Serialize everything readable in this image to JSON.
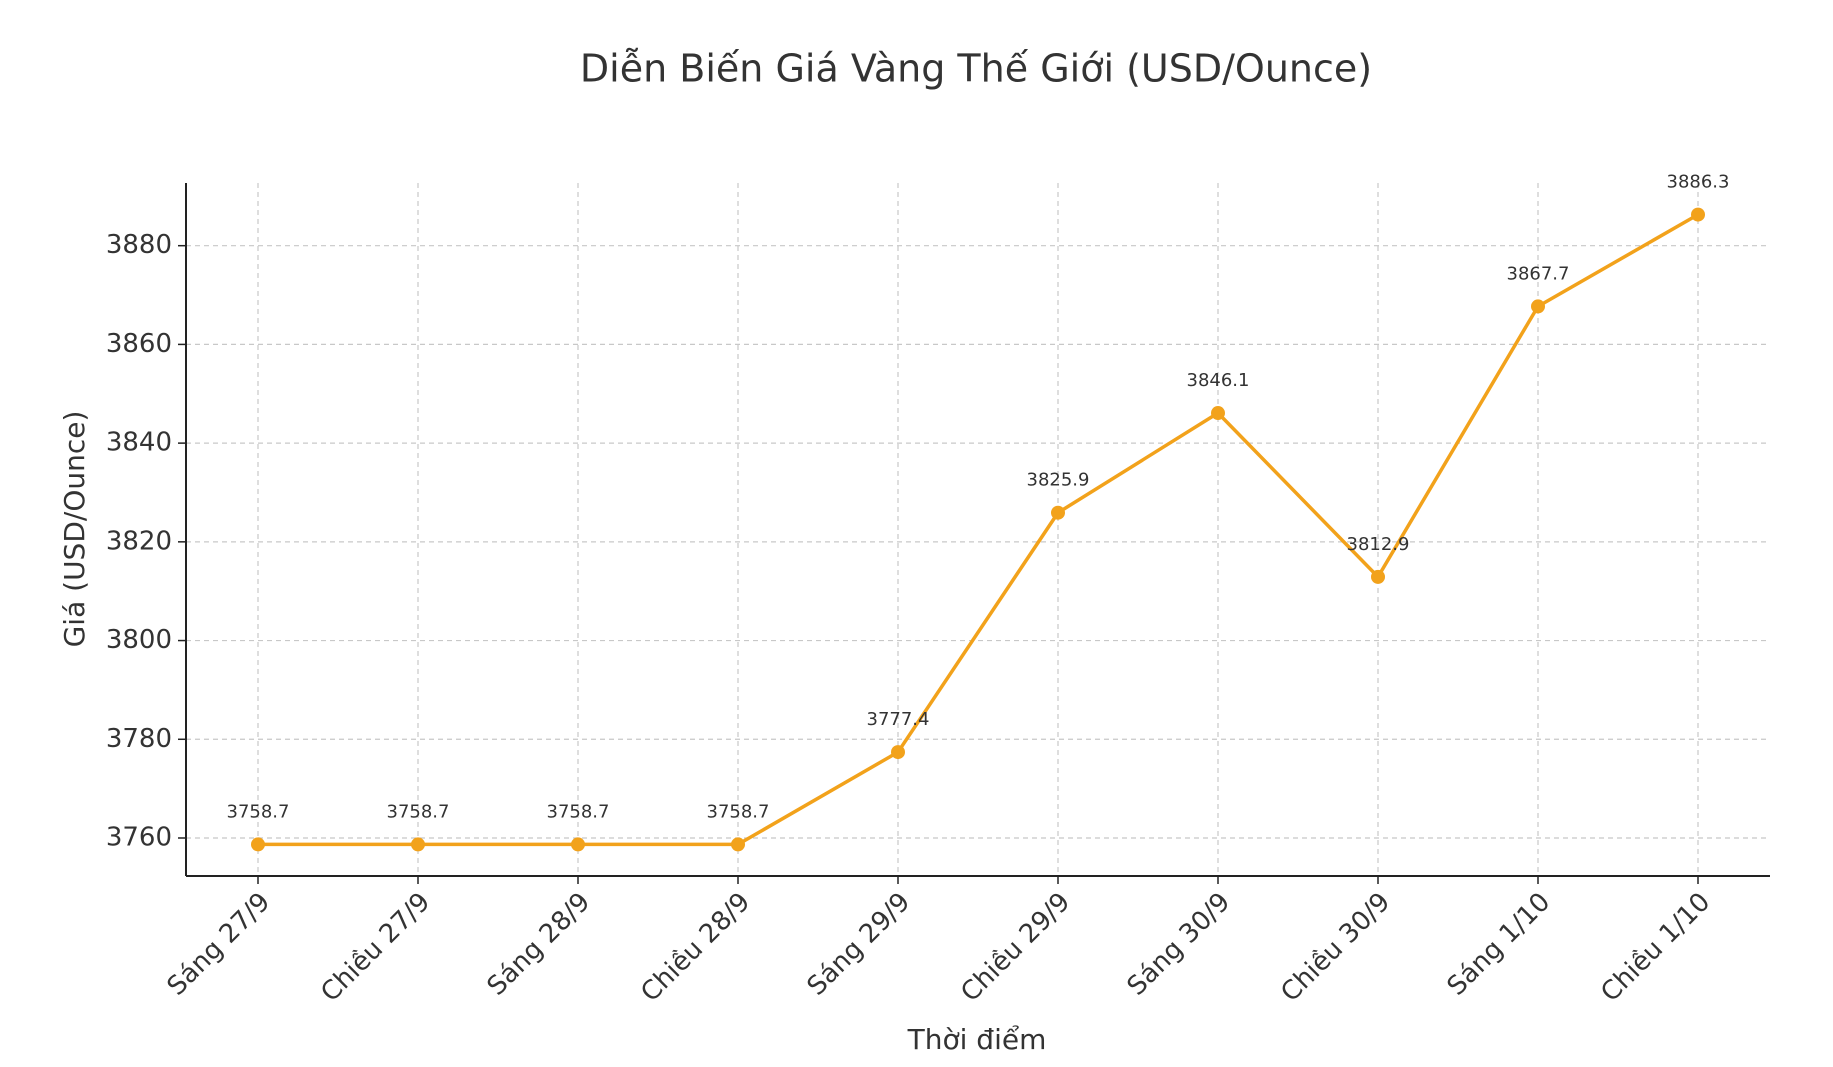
{
  "chart_data": {
    "type": "line",
    "title": "Diễn Biến Giá Vàng Thế Giới (USD/Ounce)",
    "x_label": "Thời điểm",
    "y_label": "Giá (USD/Ounce)",
    "categories": [
      "Sáng 27/9",
      "Chiều 27/9",
      "Sáng 28/9",
      "Chiều 28/9",
      "Sáng 29/9",
      "Chiều 29/9",
      "Sáng 30/9",
      "Chiều 30/9",
      "Sáng 1/10",
      "Chiều 1/10"
    ],
    "values": [
      3758.7,
      3758.7,
      3758.7,
      3758.7,
      3777.4,
      3825.9,
      3846.1,
      3812.9,
      3867.7,
      3886.3
    ],
    "color": "#f2a21b",
    "ylim": [
      3752.3,
      3892.7
    ],
    "yticks": [
      3760,
      3780,
      3800,
      3820,
      3840,
      3860,
      3880
    ],
    "grid": true
  }
}
